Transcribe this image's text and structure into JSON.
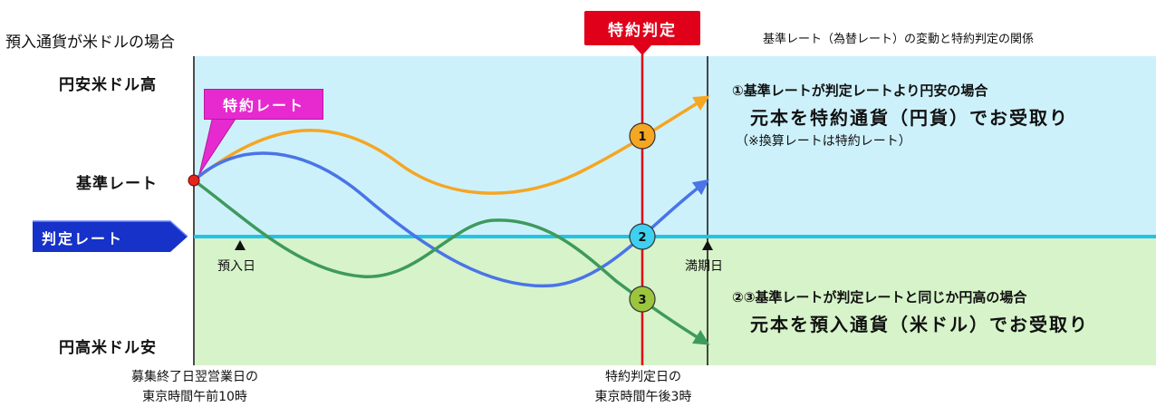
{
  "header": {
    "left_title": "預入通貨が米ドルの場合",
    "right_title": "基準レート（為替レート）の変動と特約判定の関係",
    "judgement_label": "特約判定"
  },
  "y_axis": {
    "top": "円安米ドル高",
    "base": "基準レート",
    "bottom": "円高米ドル安"
  },
  "labels": {
    "special_rate": "特約レート",
    "judgement_rate": "判定レート",
    "deposit_day": "預入日",
    "maturity_day": "満期日"
  },
  "markers": [
    "1",
    "2",
    "3"
  ],
  "case1": {
    "line1": "①基準レートが判定レートより円安の場合",
    "line2": "元本を特約通貨（円貨）でお受取り",
    "line3": "（※換算レートは特約レート）"
  },
  "case23": {
    "line1": "②③基準レートが判定レートと同じか円高の場合",
    "line2": "元本を預入通貨（米ドル）でお受取り"
  },
  "footer": {
    "left_line1": "募集終了日翌営業日の",
    "left_line2": "東京時間午前10時",
    "right_line1": "特約判定日の",
    "right_line2": "東京時間午後3時"
  },
  "colors": {
    "upper_zone": "#cdf1fb",
    "lower_zone": "#d6f3c9",
    "judgement_line": "#22c3e6",
    "judgement_vertical": "#e0001a",
    "orange_line": "#f5a623",
    "blue_line": "#4a74e8",
    "green_line": "#3e9a5c",
    "special_rate_badge": "#e62ad0",
    "judgement_rate_arrow": "#1632c8"
  }
}
